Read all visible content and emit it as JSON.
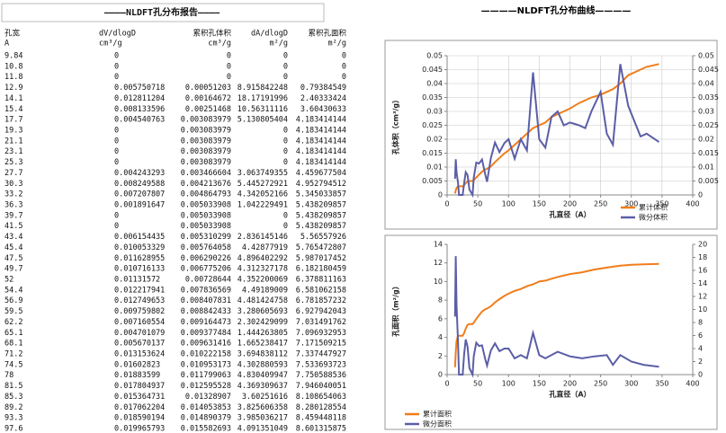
{
  "report": {
    "title": "————NLDFT孔分布报告————",
    "header": [
      [
        "孔宽",
        "dV/dlogD",
        "累积孔体积",
        "dA/dlogD",
        "累积孔面积"
      ],
      [
        "A",
        "cm³/g",
        "cm³/g",
        "m²/g",
        "m²/g"
      ]
    ],
    "rows": [
      [
        9.84,
        0,
        0,
        0,
        0
      ],
      [
        10.8,
        0,
        0,
        0,
        0
      ],
      [
        11.8,
        0,
        0,
        0,
        0
      ],
      [
        12.9,
        0.005750718,
        0.00051203,
        8.915842248,
        0.79384549
      ],
      [
        14.1,
        0.012811204,
        0.00164672,
        18.17191996,
        2.40333424
      ],
      [
        15.4,
        0.008133596,
        0.00251468,
        10.56311116,
        3.60430633
      ],
      [
        17.7,
        0.004540763,
        0.003083979,
        5.130805404,
        4.183414144
      ],
      [
        19.3,
        0,
        0.003083979,
        0,
        4.183414144
      ],
      [
        21.1,
        0,
        0.003083979,
        0,
        4.183414144
      ],
      [
        23.1,
        0,
        0.003083979,
        0,
        4.183414144
      ],
      [
        25.3,
        0,
        0.003083979,
        0,
        4.183414144
      ],
      [
        27.7,
        0.004243293,
        0.003466604,
        3.063749355,
        4.459677504
      ],
      [
        30.3,
        0.008249588,
        0.004213676,
        5.445272921,
        4.952794512
      ],
      [
        33.2,
        0.007207807,
        0.004864793,
        4.342052166,
        5.345033857
      ],
      [
        36.3,
        0.001891647,
        0.005033908,
        1.042229491,
        5.438209857
      ],
      [
        39.7,
        0,
        0.005033908,
        0,
        5.438209857
      ],
      [
        41.5,
        0,
        0.005033908,
        0,
        5.438209857
      ],
      [
        43.4,
        0.006154435,
        0.005310299,
        2.836145146,
        5.56557926
      ],
      [
        45.4,
        0.010053329,
        0.005764058,
        4.42877919,
        5.765472807
      ],
      [
        47.5,
        0.011628955,
        0.006290226,
        4.896402292,
        5.987017452
      ],
      [
        49.7,
        0.010716133,
        0.006775206,
        4.312327178,
        6.182180459
      ],
      [
        52,
        0.01131572,
        0.00728644,
        4.352200069,
        6.378811163
      ],
      [
        54.4,
        0.012217941,
        0.007836569,
        4.49189009,
        6.581062158
      ],
      [
        56.9,
        0.012749653,
        0.008407831,
        4.481424758,
        6.781857232
      ],
      [
        59.5,
        0.009759802,
        0.008842433,
        3.280605693,
        6.927942043
      ],
      [
        62.2,
        0.007160554,
        0.009164473,
        2.302429099,
        7.031491762
      ],
      [
        65.1,
        0.004701079,
        0.009377484,
        1.444263805,
        7.096932953
      ],
      [
        68.1,
        0.005670137,
        0.009631416,
        1.665238417,
        7.171509215
      ],
      [
        71.2,
        0.013153624,
        0.010222158,
        3.694838112,
        7.337447927
      ],
      [
        74.5,
        0.01602823,
        0.010953173,
        4.302880593,
        7.533693723
      ],
      [
        78,
        0.01883599,
        0.011799063,
        4.830409947,
        7.750588536
      ],
      [
        81.5,
        0.017804937,
        0.012595528,
        4.369309637,
        7.946040051
      ],
      [
        85.3,
        0.015364731,
        0.01328907,
        3.60251616,
        8.108654063
      ],
      [
        89.2,
        0.017062204,
        0.014053853,
        3.825606358,
        8.280128554
      ],
      [
        93.3,
        0.018590194,
        0.014890379,
        3.985036217,
        8.459448118
      ],
      [
        97.6,
        0.019965793,
        0.015582693,
        4.091351049,
        8.601315875
      ]
    ]
  },
  "heading": "————NLDFT孔分布曲线————",
  "chart_data": [
    {
      "type": "line",
      "xlabel": "孔直径（A）",
      "ylabel": "孔体积（cm³/g）",
      "legend": "lower right",
      "grid": true,
      "x": [
        12.9,
        14.1,
        15.4,
        17.7,
        19.3,
        25.3,
        27.7,
        30.3,
        33.2,
        36.3,
        41.5,
        43.4,
        47.5,
        52,
        56.9,
        62.2,
        65.1,
        71.2,
        78,
        85.3,
        93.3,
        100,
        110,
        120,
        130,
        140,
        150,
        160,
        170,
        180,
        190,
        200,
        215,
        225,
        235,
        250,
        260,
        270,
        282,
        295,
        315,
        325,
        345
      ],
      "xlim": [
        0,
        400
      ],
      "xticks": [
        0,
        50,
        100,
        150,
        200,
        250,
        300,
        350,
        400
      ],
      "ylim": [
        0,
        0.05
      ],
      "yticks": [
        0,
        0.005,
        0.01,
        0.015,
        0.02,
        0.025,
        0.03,
        0.035,
        0.04,
        0.045,
        0.05
      ],
      "y2lim": [
        0,
        0.05
      ],
      "y2ticks": [
        0,
        0.005,
        0.01,
        0.015,
        0.02,
        0.025,
        0.03,
        0.035,
        0.04,
        0.045,
        0.05
      ],
      "series": [
        {
          "name": "累计体积",
          "color": "#f07d1a",
          "values": [
            0.0005,
            0.0016,
            0.0025,
            0.0031,
            0.0031,
            0.0031,
            0.0035,
            0.0042,
            0.0049,
            0.005,
            0.005,
            0.0053,
            0.0063,
            0.0073,
            0.0084,
            0.0092,
            0.0094,
            0.0102,
            0.0118,
            0.0133,
            0.0149,
            0.016,
            0.018,
            0.02,
            0.022,
            0.024,
            0.025,
            0.026,
            0.028,
            0.029,
            0.03,
            0.031,
            0.033,
            0.034,
            0.035,
            0.036,
            0.037,
            0.038,
            0.04,
            0.043,
            0.045,
            0.046,
            0.047
          ]
        },
        {
          "name": "微分体积",
          "color": "#5b5ea6",
          "axis": "y2",
          "values": [
            0.0058,
            0.0128,
            0.0081,
            0.0045,
            0,
            0,
            0.0042,
            0.0082,
            0.0072,
            0.0019,
            0,
            0.0062,
            0.0116,
            0.0113,
            0.0127,
            0.0072,
            0.0047,
            0.0132,
            0.0188,
            0.0154,
            0.0186,
            0.02,
            0.013,
            0.02,
            0.016,
            0.044,
            0.02,
            0.017,
            0.028,
            0.03,
            0.025,
            0.026,
            0.025,
            0.024,
            0.03,
            0.037,
            0.022,
            0.018,
            0.047,
            0.032,
            0.021,
            0.022,
            0.019
          ]
        }
      ]
    },
    {
      "type": "line",
      "xlabel": "孔直径（A）",
      "ylabel": "孔面积（m²/g）",
      "legend": "bottom left",
      "grid": false,
      "x": [
        12.9,
        14.1,
        15.4,
        17.7,
        19.3,
        25.3,
        27.7,
        30.3,
        33.2,
        36.3,
        41.5,
        43.4,
        47.5,
        52,
        56.9,
        62.2,
        65.1,
        71.2,
        78,
        85.3,
        93.3,
        100,
        110,
        120,
        130,
        140,
        150,
        160,
        170,
        180,
        200,
        220,
        240,
        260,
        270,
        282,
        300,
        320,
        345
      ],
      "xlim": [
        0,
        400
      ],
      "xticks": [
        0,
        50,
        100,
        150,
        200,
        250,
        300,
        350,
        400
      ],
      "ylim": [
        0,
        14
      ],
      "yticks": [
        0,
        2,
        4,
        6,
        8,
        10,
        12,
        14
      ],
      "y2lim": [
        0,
        20
      ],
      "y2ticks": [
        0,
        2,
        4,
        6,
        8,
        10,
        12,
        14,
        16,
        18,
        20
      ],
      "series": [
        {
          "name": "累计面积",
          "color": "#f07d1a",
          "values": [
            0.79,
            2.4,
            3.6,
            4.18,
            4.18,
            4.18,
            4.46,
            4.95,
            5.35,
            5.44,
            5.44,
            5.57,
            5.99,
            6.38,
            6.78,
            7.03,
            7.1,
            7.34,
            7.75,
            8.11,
            8.46,
            8.7,
            9,
            9.2,
            9.5,
            9.7,
            10,
            10.1,
            10.3,
            10.5,
            10.8,
            11,
            11.3,
            11.5,
            11.6,
            11.7,
            11.8,
            11.85,
            11.9
          ]
        },
        {
          "name": "微分面积",
          "color": "#5b5ea6",
          "axis": "y2",
          "values": [
            8.9,
            18.2,
            10.6,
            5.1,
            0,
            0,
            3.1,
            5.4,
            4.3,
            1,
            0,
            2.8,
            4.9,
            4.4,
            4.5,
            2.3,
            1.4,
            3.7,
            4.8,
            3.6,
            4,
            4,
            2.5,
            3,
            2.5,
            6.4,
            3,
            2.5,
            3,
            3.5,
            2.8,
            2.5,
            2.8,
            3,
            1.5,
            3,
            2,
            1.5,
            1.2
          ]
        }
      ]
    }
  ]
}
